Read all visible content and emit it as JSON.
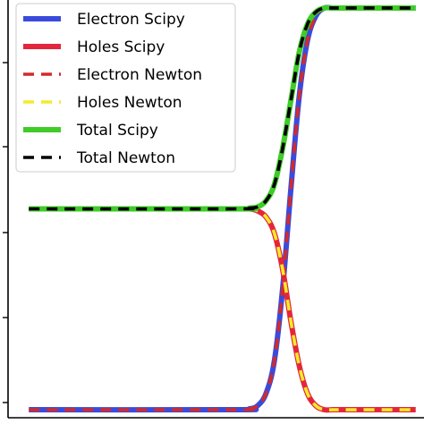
{
  "chart_data": {
    "type": "line",
    "title": "",
    "xlabel": "",
    "ylabel": "",
    "xlim": [
      0,
      1
    ],
    "ylim": [
      -0.02,
      1.02
    ],
    "grid": false,
    "legend_position": "top-left",
    "series": [
      {
        "name": "Electron Scipy",
        "color": "#3a4bdc",
        "style": "solid",
        "x": [
          0.05,
          0.55,
          0.58,
          0.6,
          0.62,
          0.64,
          0.66,
          0.68,
          0.7,
          0.72,
          0.74,
          0.76,
          0.78,
          0.8,
          0.98
        ],
        "y": [
          0.0,
          0.0,
          0.002,
          0.01,
          0.04,
          0.12,
          0.3,
          0.55,
          0.78,
          0.92,
          0.98,
          1.0,
          1.0,
          1.0,
          1.0
        ]
      },
      {
        "name": "Holes Scipy",
        "color": "#e3263c",
        "style": "solid",
        "x": [
          0.05,
          0.55,
          0.58,
          0.6,
          0.62,
          0.64,
          0.66,
          0.68,
          0.7,
          0.72,
          0.74,
          0.76,
          0.78,
          0.8,
          0.98
        ],
        "y": [
          0.5,
          0.5,
          0.5,
          0.495,
          0.48,
          0.44,
          0.35,
          0.22,
          0.11,
          0.04,
          0.01,
          0.0,
          0.0,
          0.0,
          0.0
        ]
      },
      {
        "name": "Electron Newton",
        "color": "#d42a2a",
        "style": "dashed",
        "x": [
          0.05,
          0.55,
          0.58,
          0.6,
          0.62,
          0.64,
          0.66,
          0.68,
          0.7,
          0.72,
          0.74,
          0.76,
          0.78,
          0.8,
          0.98
        ],
        "y": [
          0.0,
          0.0,
          0.002,
          0.01,
          0.04,
          0.12,
          0.3,
          0.55,
          0.78,
          0.92,
          0.98,
          1.0,
          1.0,
          1.0,
          1.0
        ]
      },
      {
        "name": "Holes Newton",
        "color": "#f5ea2a",
        "style": "dashed",
        "x": [
          0.05,
          0.55,
          0.58,
          0.6,
          0.62,
          0.64,
          0.66,
          0.68,
          0.7,
          0.72,
          0.74,
          0.76,
          0.78,
          0.8,
          0.98
        ],
        "y": [
          0.5,
          0.5,
          0.5,
          0.495,
          0.48,
          0.44,
          0.35,
          0.22,
          0.11,
          0.04,
          0.01,
          0.0,
          0.0,
          0.0,
          0.0
        ]
      },
      {
        "name": "Total Scipy",
        "color": "#3fcc28",
        "style": "solid",
        "x": [
          0.05,
          0.55,
          0.58,
          0.6,
          0.62,
          0.64,
          0.66,
          0.68,
          0.7,
          0.72,
          0.74,
          0.76,
          0.78,
          0.8,
          0.98
        ],
        "y": [
          0.5,
          0.5,
          0.502,
          0.505,
          0.52,
          0.56,
          0.65,
          0.77,
          0.89,
          0.96,
          0.99,
          1.0,
          1.0,
          1.0,
          1.0
        ]
      },
      {
        "name": "Total Newton",
        "color": "#000000",
        "style": "dashed",
        "x": [
          0.05,
          0.55,
          0.58,
          0.6,
          0.62,
          0.64,
          0.66,
          0.68,
          0.7,
          0.72,
          0.74,
          0.76,
          0.78,
          0.8,
          0.98
        ],
        "y": [
          0.5,
          0.5,
          0.502,
          0.505,
          0.52,
          0.56,
          0.65,
          0.77,
          0.89,
          0.96,
          0.99,
          1.0,
          1.0,
          1.0,
          1.0
        ]
      }
    ]
  }
}
